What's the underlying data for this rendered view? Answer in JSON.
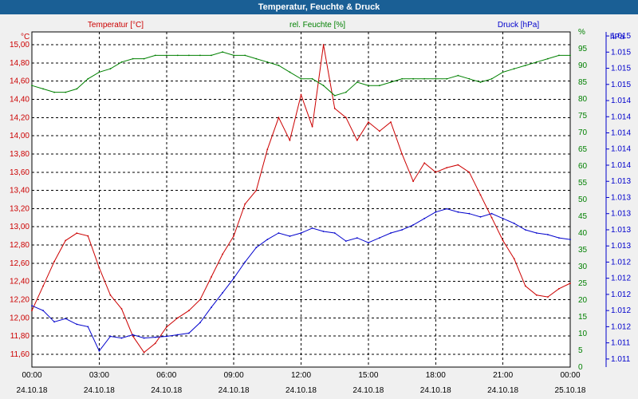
{
  "window": {
    "title": "Temperatur, Feuchte & Druck"
  },
  "colors": {
    "temperature": "#cc0000",
    "humidity": "#008000",
    "pressure": "#0000cc",
    "axis": "#000000",
    "grid": "#000000"
  },
  "chart_data": {
    "type": "line",
    "title": "Temperatur, Feuchte & Druck",
    "series": [
      {
        "name": "Temperatur [°C]",
        "axis": "left",
        "x": [
          0.0,
          0.5,
          1.0,
          1.5,
          2.0,
          2.5,
          3.0,
          3.5,
          4.0,
          4.5,
          5.0,
          5.5,
          6.0,
          6.5,
          7.0,
          7.5,
          8.0,
          8.5,
          9.0,
          9.5,
          10.0,
          10.5,
          11.0,
          11.5,
          12.0,
          12.5,
          13.0,
          13.5,
          14.0,
          14.5,
          15.0,
          15.5,
          16.0,
          16.5,
          17.0,
          17.5,
          18.0,
          18.5,
          19.0,
          19.5,
          20.0,
          20.5,
          21.0,
          21.5,
          22.0,
          22.5,
          23.0,
          23.5,
          24.0
        ],
        "values": [
          12.08,
          12.35,
          12.62,
          12.85,
          12.93,
          12.9,
          12.55,
          12.25,
          12.1,
          11.8,
          11.62,
          11.72,
          11.9,
          12.0,
          12.08,
          12.2,
          12.45,
          12.7,
          12.9,
          13.25,
          13.4,
          13.85,
          14.2,
          13.95,
          14.45,
          14.1,
          15.0,
          14.3,
          14.2,
          13.95,
          14.15,
          14.05,
          14.15,
          13.8,
          13.5,
          13.7,
          13.6,
          13.65,
          13.68,
          13.6,
          13.35,
          13.1,
          12.85,
          12.65,
          12.35,
          12.25,
          12.23,
          12.32,
          12.38
        ]
      },
      {
        "name": "rel. Feuchte [%]",
        "axis": "right1",
        "x": [
          0.0,
          0.5,
          1.0,
          1.5,
          2.0,
          2.5,
          3.0,
          3.5,
          4.0,
          4.5,
          5.0,
          5.5,
          6.0,
          6.5,
          7.0,
          7.5,
          8.0,
          8.5,
          9.0,
          9.5,
          10.0,
          10.5,
          11.0,
          11.5,
          12.0,
          12.5,
          13.0,
          13.5,
          14.0,
          14.5,
          15.0,
          15.5,
          16.0,
          16.5,
          17.0,
          17.5,
          18.0,
          18.5,
          19.0,
          19.5,
          20.0,
          20.5,
          21.0,
          21.5,
          22.0,
          22.5,
          23.0,
          23.5,
          24.0
        ],
        "values": [
          84,
          83,
          82,
          82,
          83,
          86,
          88,
          89,
          91,
          92,
          92,
          93,
          93,
          93,
          93,
          93,
          93,
          94,
          93,
          93,
          92,
          91,
          90,
          88,
          86,
          86,
          84,
          81,
          82,
          85,
          84,
          84,
          85,
          86,
          86,
          86,
          86,
          86,
          87,
          86,
          85,
          86,
          88,
          89,
          90,
          91,
          92,
          93,
          93
        ]
      },
      {
        "name": "Druck [hPa]",
        "axis": "right2",
        "x": [
          0.0,
          0.5,
          1.0,
          1.5,
          2.0,
          2.5,
          3.0,
          3.5,
          4.0,
          4.5,
          5.0,
          5.5,
          6.0,
          6.5,
          7.0,
          7.5,
          8.0,
          8.5,
          9.0,
          9.5,
          10.0,
          10.5,
          11.0,
          11.5,
          12.0,
          12.5,
          13.0,
          13.5,
          14.0,
          14.5,
          15.0,
          15.5,
          16.0,
          16.5,
          17.0,
          17.5,
          18.0,
          18.5,
          19.0,
          19.5,
          20.0,
          20.5,
          21.0,
          21.5,
          22.0,
          22.5,
          23.0,
          23.5,
          24.0
        ],
        "values": [
          1011.76,
          1011.7,
          1011.56,
          1011.6,
          1011.53,
          1011.5,
          1011.2,
          1011.38,
          1011.36,
          1011.4,
          1011.36,
          1011.37,
          1011.38,
          1011.4,
          1011.42,
          1011.55,
          1011.74,
          1011.92,
          1012.1,
          1012.3,
          1012.48,
          1012.58,
          1012.66,
          1012.62,
          1012.66,
          1012.72,
          1012.68,
          1012.66,
          1012.56,
          1012.6,
          1012.54,
          1012.6,
          1012.66,
          1012.7,
          1012.76,
          1012.84,
          1012.92,
          1012.96,
          1012.92,
          1012.9,
          1012.86,
          1012.9,
          1012.84,
          1012.78,
          1012.7,
          1012.66,
          1012.64,
          1012.6,
          1012.58
        ]
      }
    ],
    "axes": {
      "left": {
        "label": "°C",
        "range": [
          11.46,
          15.14
        ],
        "ticks": [
          {
            "v": 11.6,
            "label": "11,60"
          },
          {
            "v": 11.8,
            "label": "11,80"
          },
          {
            "v": 12.0,
            "label": "12,00"
          },
          {
            "v": 12.2,
            "label": "12,20"
          },
          {
            "v": 12.4,
            "label": "12,40"
          },
          {
            "v": 12.6,
            "label": "12,60"
          },
          {
            "v": 12.8,
            "label": "12,80"
          },
          {
            "v": 13.0,
            "label": "13,00"
          },
          {
            "v": 13.2,
            "label": "13,20"
          },
          {
            "v": 13.4,
            "label": "13,40"
          },
          {
            "v": 13.6,
            "label": "13,60"
          },
          {
            "v": 13.8,
            "label": "13,80"
          },
          {
            "v": 14.0,
            "label": "14,00"
          },
          {
            "v": 14.2,
            "label": "14,20"
          },
          {
            "v": 14.4,
            "label": "14,40"
          },
          {
            "v": 14.6,
            "label": "14,60"
          },
          {
            "v": 14.8,
            "label": "14,80"
          },
          {
            "v": 15.0,
            "label": "15,00"
          }
        ]
      },
      "right1": {
        "label": "%",
        "range": [
          0,
          100
        ],
        "ticks": [
          {
            "v": 0,
            "label": "0"
          },
          {
            "v": 5,
            "label": "5"
          },
          {
            "v": 10,
            "label": "10"
          },
          {
            "v": 15,
            "label": "15"
          },
          {
            "v": 20,
            "label": "20"
          },
          {
            "v": 25,
            "label": "25"
          },
          {
            "v": 30,
            "label": "30"
          },
          {
            "v": 35,
            "label": "35"
          },
          {
            "v": 40,
            "label": "40"
          },
          {
            "v": 45,
            "label": "45"
          },
          {
            "v": 50,
            "label": "50"
          },
          {
            "v": 55,
            "label": "55"
          },
          {
            "v": 60,
            "label": "60"
          },
          {
            "v": 65,
            "label": "65"
          },
          {
            "v": 70,
            "label": "70"
          },
          {
            "v": 75,
            "label": "75"
          },
          {
            "v": 80,
            "label": "80"
          },
          {
            "v": 85,
            "label": "85"
          },
          {
            "v": 90,
            "label": "90"
          },
          {
            "v": 95,
            "label": "95"
          },
          {
            "v": 100,
            "label": "%"
          }
        ]
      },
      "right2": {
        "label": "hPa",
        "range": [
          1011.0,
          1015.15
        ],
        "ticks": [
          {
            "v": 1011.1,
            "label": "1.011"
          },
          {
            "v": 1011.3,
            "label": "1.011"
          },
          {
            "v": 1011.5,
            "label": "1.012"
          },
          {
            "v": 1011.7,
            "label": "1.012"
          },
          {
            "v": 1011.9,
            "label": "1.012"
          },
          {
            "v": 1012.1,
            "label": "1.012"
          },
          {
            "v": 1012.3,
            "label": "1.012"
          },
          {
            "v": 1012.5,
            "label": "1.013"
          },
          {
            "v": 1012.7,
            "label": "1.013"
          },
          {
            "v": 1012.9,
            "label": "1.013"
          },
          {
            "v": 1013.1,
            "label": "1.013"
          },
          {
            "v": 1013.3,
            "label": "1.013"
          },
          {
            "v": 1013.5,
            "label": "1.014"
          },
          {
            "v": 1013.7,
            "label": "1.014"
          },
          {
            "v": 1013.9,
            "label": "1.014"
          },
          {
            "v": 1014.1,
            "label": "1.014"
          },
          {
            "v": 1014.3,
            "label": "1.014"
          },
          {
            "v": 1014.5,
            "label": "1.015"
          },
          {
            "v": 1014.7,
            "label": "1.015"
          },
          {
            "v": 1014.9,
            "label": "1.015"
          },
          {
            "v": 1015.1,
            "label": "1.015"
          }
        ]
      },
      "x": {
        "range": [
          0,
          24
        ],
        "ticks": [
          {
            "v": 0,
            "time": "00:00",
            "date": "24.10.18"
          },
          {
            "v": 3,
            "time": "03:00",
            "date": "24.10.18"
          },
          {
            "v": 6,
            "time": "06:00",
            "date": "24.10.18"
          },
          {
            "v": 9,
            "time": "09:00",
            "date": "24.10.18"
          },
          {
            "v": 12,
            "time": "12:00",
            "date": "24.10.18"
          },
          {
            "v": 15,
            "time": "15:00",
            "date": "24.10.18"
          },
          {
            "v": 18,
            "time": "18:00",
            "date": "24.10.18"
          },
          {
            "v": 21,
            "time": "21:00",
            "date": "24.10.18"
          },
          {
            "v": 24,
            "time": "00:00",
            "date": "25.10.18"
          }
        ]
      }
    },
    "legend": {
      "placement": "top"
    },
    "grid": true
  }
}
